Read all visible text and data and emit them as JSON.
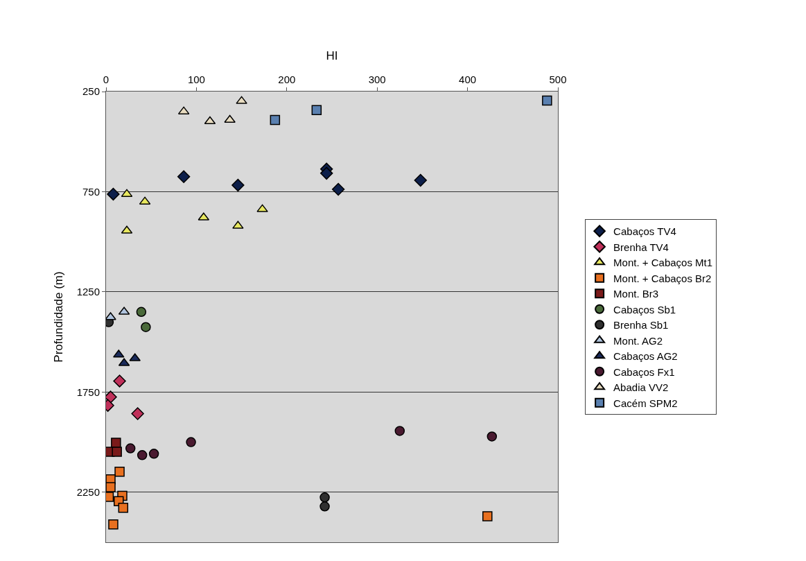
{
  "chart_data": {
    "type": "scatter",
    "xlabel": "HI",
    "ylabel": "Profundidade (m)",
    "xlim": [
      0,
      500
    ],
    "xticks": [
      0,
      100,
      200,
      300,
      400,
      500
    ],
    "ylim": [
      2500,
      250
    ],
    "yticks": [
      250,
      750,
      1250,
      1750,
      2250
    ],
    "grid": "y",
    "legend": "right",
    "series": [
      {
        "name": "Cabaços TV4",
        "color": "#0d1f4a",
        "marker": "diamond",
        "x": [
          8,
          86,
          146,
          244,
          244,
          257,
          348
        ],
        "values": [
          762,
          675,
          717,
          637,
          658,
          738,
          693
        ]
      },
      {
        "name": "Brenha TV4",
        "color": "#c0305a",
        "marker": "diamond",
        "x": [
          15,
          5,
          2,
          35
        ],
        "values": [
          1695,
          1775,
          1817,
          1858
        ]
      },
      {
        "name": "Mont. + Cabaços Mt1",
        "color": "#e8e860",
        "marker": "triangle",
        "x": [
          23,
          43,
          23,
          108,
          146,
          173
        ],
        "values": [
          762,
          800,
          945,
          879,
          921,
          838
        ]
      },
      {
        "name": "Mont. + Cabaços Br2",
        "color": "#e87020",
        "marker": "square",
        "x": [
          15,
          5,
          5,
          3,
          18,
          14,
          19,
          8,
          422
        ],
        "values": [
          2148,
          2186,
          2225,
          2273,
          2268,
          2295,
          2328,
          2411,
          2370
        ]
      },
      {
        "name": "Mont. Br3",
        "color": "#7a1a1a",
        "marker": "square",
        "x": [
          11,
          4,
          12
        ],
        "values": [
          2003,
          2048,
          2048
        ]
      },
      {
        "name": "Cabaços Sb1",
        "color": "#4a6a3a",
        "marker": "circle",
        "x": [
          39,
          44
        ],
        "values": [
          1350,
          1426
        ]
      },
      {
        "name": "Brenha Sb1",
        "color": "#303030",
        "marker": "circle",
        "x": [
          3,
          242,
          242
        ],
        "values": [
          1401,
          2276,
          2321
        ]
      },
      {
        "name": "Mont. AG2",
        "color": "#b0c4de",
        "marker": "triangle",
        "x": [
          5,
          20
        ],
        "values": [
          1377,
          1350
        ]
      },
      {
        "name": "Cabaços AG2",
        "color": "#1a2a5a",
        "marker": "triangle",
        "x": [
          14,
          20,
          32
        ],
        "values": [
          1564,
          1606,
          1582
        ]
      },
      {
        "name": "Cabaços Fx1",
        "color": "#4a1a30",
        "marker": "circle",
        "x": [
          27,
          40,
          53,
          94,
          325,
          427
        ],
        "values": [
          2031,
          2065,
          2058,
          2000,
          1944,
          1972
        ]
      },
      {
        "name": "Abadia VV2",
        "color": "#e8dcc0",
        "marker": "triangle",
        "x": [
          86,
          150,
          115,
          137
        ],
        "values": [
          350,
          298,
          399,
          392
        ]
      },
      {
        "name": "Cacém SPM2",
        "color": "#5a80b0",
        "marker": "square",
        "x": [
          187,
          233,
          488
        ],
        "values": [
          392,
          343,
          295
        ]
      }
    ]
  }
}
